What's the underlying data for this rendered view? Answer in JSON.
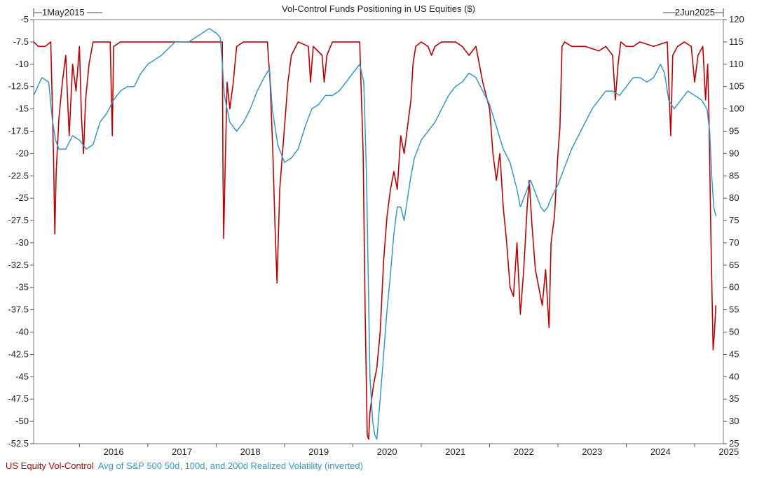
{
  "chart_data": {
    "type": "line",
    "title": "Vol-Control Funds Positioning in US Equities ($)",
    "start_label": "1May2015",
    "end_label": "2Jun2025",
    "x_range": [
      2015.33,
      2025.42
    ],
    "x_ticks": [
      "2016",
      "2017",
      "2018",
      "2019",
      "2020",
      "2021",
      "2022",
      "2023",
      "2024",
      "2025"
    ],
    "left_axis": {
      "ylim": [
        -52.5,
        -5
      ],
      "ticks": [
        "-5",
        "-7.5",
        "-10",
        "-12.5",
        "-15",
        "-17.5",
        "-20",
        "-22.5",
        "-25",
        "-27.5",
        "-30",
        "-32.5",
        "-35",
        "-37.5",
        "-40",
        "-42.5",
        "-45",
        "-47.5",
        "-50",
        "-52.5"
      ]
    },
    "right_axis": {
      "ylim": [
        25,
        120
      ],
      "ticks": [
        "120",
        "115",
        "110",
        "105",
        "100",
        "95",
        "90",
        "85",
        "80",
        "75",
        "70",
        "65",
        "60",
        "55",
        "50",
        "45",
        "40",
        "35",
        "30",
        "25"
      ]
    },
    "grid": false,
    "legend_position": "bottom-left",
    "series": [
      {
        "name": "US Equity Vol-Control",
        "axis": "left",
        "color": "#c00000",
        "points": [
          [
            2015.33,
            -7.5
          ],
          [
            2015.4,
            -8.0
          ],
          [
            2015.5,
            -8.0
          ],
          [
            2015.58,
            -7.5
          ],
          [
            2015.62,
            -20.0
          ],
          [
            2015.64,
            -29.0
          ],
          [
            2015.66,
            -22.0
          ],
          [
            2015.7,
            -16.0
          ],
          [
            2015.75,
            -12.0
          ],
          [
            2015.8,
            -9.0
          ],
          [
            2015.85,
            -18.0
          ],
          [
            2015.9,
            -10.0
          ],
          [
            2015.95,
            -13.0
          ],
          [
            2016.0,
            -8.0
          ],
          [
            2016.03,
            -16.0
          ],
          [
            2016.06,
            -20.0
          ],
          [
            2016.09,
            -14.0
          ],
          [
            2016.14,
            -10.0
          ],
          [
            2016.2,
            -7.5
          ],
          [
            2016.45,
            -7.5
          ],
          [
            2016.48,
            -18.0
          ],
          [
            2016.5,
            -8.0
          ],
          [
            2016.6,
            -7.5
          ],
          [
            2016.75,
            -7.5
          ],
          [
            2016.85,
            -7.5
          ],
          [
            2017.0,
            -7.5
          ],
          [
            2018.09,
            -7.5
          ],
          [
            2018.1,
            -22.0
          ],
          [
            2018.11,
            -29.5
          ],
          [
            2018.13,
            -22.0
          ],
          [
            2018.16,
            -12.0
          ],
          [
            2018.2,
            -15.0
          ],
          [
            2018.25,
            -12.0
          ],
          [
            2018.3,
            -8.0
          ],
          [
            2018.4,
            -7.5
          ],
          [
            2018.75,
            -7.5
          ],
          [
            2018.79,
            -12.0
          ],
          [
            2018.83,
            -20.0
          ],
          [
            2018.86,
            -28.0
          ],
          [
            2018.89,
            -34.5
          ],
          [
            2018.93,
            -24.0
          ],
          [
            2019.0,
            -17.0
          ],
          [
            2019.05,
            -12.0
          ],
          [
            2019.1,
            -9.0
          ],
          [
            2019.2,
            -7.5
          ],
          [
            2019.35,
            -8.0
          ],
          [
            2019.38,
            -12.0
          ],
          [
            2019.42,
            -8.0
          ],
          [
            2019.55,
            -9.0
          ],
          [
            2019.58,
            -12.0
          ],
          [
            2019.62,
            -9.0
          ],
          [
            2019.7,
            -7.5
          ],
          [
            2020.1,
            -7.5
          ],
          [
            2020.15,
            -20.0
          ],
          [
            2020.18,
            -38.0
          ],
          [
            2020.21,
            -51.5
          ],
          [
            2020.23,
            -52.0
          ],
          [
            2020.25,
            -49.0
          ],
          [
            2020.3,
            -46.0
          ],
          [
            2020.35,
            -44.0
          ],
          [
            2020.4,
            -40.0
          ],
          [
            2020.45,
            -32.0
          ],
          [
            2020.5,
            -27.0
          ],
          [
            2020.55,
            -24.0
          ],
          [
            2020.6,
            -22.0
          ],
          [
            2020.65,
            -24.0
          ],
          [
            2020.7,
            -18.0
          ],
          [
            2020.75,
            -20.0
          ],
          [
            2020.8,
            -17.0
          ],
          [
            2020.85,
            -14.0
          ],
          [
            2020.88,
            -10.0
          ],
          [
            2020.92,
            -8.0
          ],
          [
            2021.0,
            -7.5
          ],
          [
            2021.1,
            -8.0
          ],
          [
            2021.15,
            -9.0
          ],
          [
            2021.2,
            -8.0
          ],
          [
            2021.3,
            -7.5
          ],
          [
            2021.5,
            -7.5
          ],
          [
            2021.6,
            -8.0
          ],
          [
            2021.7,
            -9.0
          ],
          [
            2021.8,
            -8.0
          ],
          [
            2021.9,
            -12.0
          ],
          [
            2022.0,
            -15.0
          ],
          [
            2022.05,
            -20.0
          ],
          [
            2022.1,
            -23.0
          ],
          [
            2022.15,
            -20.0
          ],
          [
            2022.2,
            -26.0
          ],
          [
            2022.25,
            -30.0
          ],
          [
            2022.3,
            -35.0
          ],
          [
            2022.35,
            -36.0
          ],
          [
            2022.4,
            -30.0
          ],
          [
            2022.45,
            -38.0
          ],
          [
            2022.5,
            -33.0
          ],
          [
            2022.55,
            -26.0
          ],
          [
            2022.58,
            -23.0
          ],
          [
            2022.62,
            -28.0
          ],
          [
            2022.67,
            -33.0
          ],
          [
            2022.72,
            -35.0
          ],
          [
            2022.77,
            -37.0
          ],
          [
            2022.82,
            -33.0
          ],
          [
            2022.87,
            -39.5
          ],
          [
            2022.9,
            -30.0
          ],
          [
            2022.95,
            -27.0
          ],
          [
            2023.0,
            -20.0
          ],
          [
            2023.03,
            -17.0
          ],
          [
            2023.06,
            -8.0
          ],
          [
            2023.1,
            -7.5
          ],
          [
            2023.2,
            -8.0
          ],
          [
            2023.4,
            -8.0
          ],
          [
            2023.6,
            -8.5
          ],
          [
            2023.7,
            -8.0
          ],
          [
            2023.8,
            -9.0
          ],
          [
            2023.84,
            -14.0
          ],
          [
            2023.88,
            -10.0
          ],
          [
            2023.92,
            -7.5
          ],
          [
            2024.0,
            -8.0
          ],
          [
            2024.1,
            -8.0
          ],
          [
            2024.2,
            -7.5
          ],
          [
            2024.4,
            -8.0
          ],
          [
            2024.6,
            -7.5
          ],
          [
            2024.65,
            -18.0
          ],
          [
            2024.68,
            -9.0
          ],
          [
            2024.75,
            -8.0
          ],
          [
            2024.85,
            -7.5
          ],
          [
            2024.95,
            -8.0
          ],
          [
            2025.0,
            -12.0
          ],
          [
            2025.05,
            -9.0
          ],
          [
            2025.12,
            -8.0
          ],
          [
            2025.16,
            -14.0
          ],
          [
            2025.19,
            -10.0
          ],
          [
            2025.21,
            -16.0
          ],
          [
            2025.24,
            -30.0
          ],
          [
            2025.27,
            -42.0
          ],
          [
            2025.29,
            -40.0
          ],
          [
            2025.31,
            -37.0
          ]
        ]
      },
      {
        "name": "Avg of S&P 500 50d, 100d, and 200d Realized Volatility (inverted)",
        "axis": "right",
        "color": "#3399cc",
        "points": [
          [
            2015.33,
            103.0
          ],
          [
            2015.45,
            107.0
          ],
          [
            2015.55,
            106.0
          ],
          [
            2015.6,
            98.0
          ],
          [
            2015.65,
            93.0
          ],
          [
            2015.7,
            91.0
          ],
          [
            2015.8,
            91.0
          ],
          [
            2015.9,
            94.0
          ],
          [
            2016.0,
            93.0
          ],
          [
            2016.1,
            91.0
          ],
          [
            2016.2,
            92.0
          ],
          [
            2016.3,
            97.0
          ],
          [
            2016.4,
            99.0
          ],
          [
            2016.5,
            102.0
          ],
          [
            2016.6,
            104.0
          ],
          [
            2016.7,
            105.0
          ],
          [
            2016.8,
            105.0
          ],
          [
            2016.9,
            108.0
          ],
          [
            2017.0,
            110.0
          ],
          [
            2017.2,
            112.0
          ],
          [
            2017.4,
            115.0
          ],
          [
            2017.6,
            115.0
          ],
          [
            2017.8,
            117.0
          ],
          [
            2017.9,
            118.0
          ],
          [
            2018.0,
            117.0
          ],
          [
            2018.06,
            116.0
          ],
          [
            2018.09,
            110.0
          ],
          [
            2018.12,
            103.0
          ],
          [
            2018.2,
            97.0
          ],
          [
            2018.3,
            95.0
          ],
          [
            2018.4,
            97.0
          ],
          [
            2018.5,
            100.0
          ],
          [
            2018.6,
            104.0
          ],
          [
            2018.7,
            107.0
          ],
          [
            2018.78,
            109.0
          ],
          [
            2018.82,
            100.0
          ],
          [
            2018.9,
            92.0
          ],
          [
            2019.0,
            88.0
          ],
          [
            2019.1,
            89.0
          ],
          [
            2019.2,
            91.0
          ],
          [
            2019.3,
            96.0
          ],
          [
            2019.4,
            100.0
          ],
          [
            2019.5,
            101.0
          ],
          [
            2019.6,
            103.0
          ],
          [
            2019.7,
            103.0
          ],
          [
            2019.8,
            104.0
          ],
          [
            2019.9,
            106.0
          ],
          [
            2020.0,
            108.0
          ],
          [
            2020.1,
            110.0
          ],
          [
            2020.16,
            106.0
          ],
          [
            2020.2,
            85.0
          ],
          [
            2020.25,
            40.0
          ],
          [
            2020.29,
            30.0
          ],
          [
            2020.32,
            27.0
          ],
          [
            2020.35,
            26.0
          ],
          [
            2020.4,
            35.0
          ],
          [
            2020.45,
            45.0
          ],
          [
            2020.5,
            55.0
          ],
          [
            2020.55,
            63.0
          ],
          [
            2020.6,
            72.0
          ],
          [
            2020.65,
            78.0
          ],
          [
            2020.7,
            78.0
          ],
          [
            2020.75,
            75.0
          ],
          [
            2020.8,
            80.0
          ],
          [
            2020.85,
            85.0
          ],
          [
            2020.9,
            89.0
          ],
          [
            2020.95,
            91.0
          ],
          [
            2021.0,
            93.0
          ],
          [
            2021.1,
            95.0
          ],
          [
            2021.2,
            97.0
          ],
          [
            2021.3,
            100.0
          ],
          [
            2021.4,
            103.0
          ],
          [
            2021.5,
            105.0
          ],
          [
            2021.6,
            106.0
          ],
          [
            2021.7,
            108.0
          ],
          [
            2021.8,
            107.0
          ],
          [
            2021.9,
            104.0
          ],
          [
            2022.0,
            101.0
          ],
          [
            2022.1,
            96.0
          ],
          [
            2022.2,
            91.0
          ],
          [
            2022.3,
            88.0
          ],
          [
            2022.4,
            82.0
          ],
          [
            2022.45,
            78.0
          ],
          [
            2022.5,
            80.0
          ],
          [
            2022.55,
            82.0
          ],
          [
            2022.6,
            84.0
          ],
          [
            2022.65,
            82.0
          ],
          [
            2022.7,
            80.0
          ],
          [
            2022.75,
            78.0
          ],
          [
            2022.8,
            77.0
          ],
          [
            2022.85,
            78.0
          ],
          [
            2022.9,
            80.0
          ],
          [
            2023.0,
            83.0
          ],
          [
            2023.1,
            87.0
          ],
          [
            2023.2,
            91.0
          ],
          [
            2023.3,
            94.0
          ],
          [
            2023.4,
            97.0
          ],
          [
            2023.5,
            100.0
          ],
          [
            2023.6,
            102.0
          ],
          [
            2023.7,
            104.0
          ],
          [
            2023.8,
            104.0
          ],
          [
            2023.9,
            103.0
          ],
          [
            2024.0,
            105.0
          ],
          [
            2024.1,
            107.0
          ],
          [
            2024.2,
            107.0
          ],
          [
            2024.3,
            106.0
          ],
          [
            2024.4,
            107.0
          ],
          [
            2024.5,
            110.0
          ],
          [
            2024.56,
            108.0
          ],
          [
            2024.62,
            102.0
          ],
          [
            2024.7,
            100.0
          ],
          [
            2024.8,
            102.0
          ],
          [
            2024.9,
            104.0
          ],
          [
            2025.0,
            103.0
          ],
          [
            2025.1,
            102.0
          ],
          [
            2025.18,
            100.0
          ],
          [
            2025.22,
            95.0
          ],
          [
            2025.25,
            85.0
          ],
          [
            2025.28,
            78.0
          ],
          [
            2025.31,
            76.0
          ]
        ]
      }
    ]
  }
}
